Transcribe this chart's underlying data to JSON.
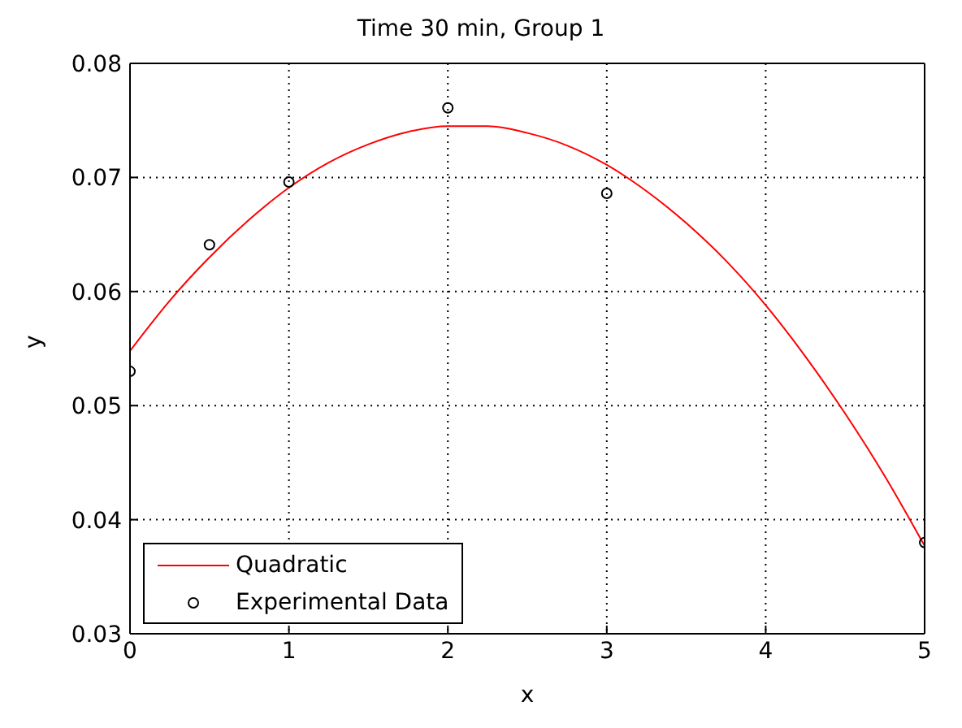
{
  "chart_data": {
    "type": "line",
    "title": "Time 30 min, Group 1",
    "xlabel": "x",
    "ylabel": "y",
    "xlim": [
      0,
      5
    ],
    "xticks": [
      0,
      1,
      2,
      3,
      4,
      5
    ],
    "ylim": [
      0.03,
      0.08
    ],
    "yticks": [
      0.03,
      0.04,
      0.05,
      0.06,
      0.07,
      0.08
    ],
    "grid": true,
    "legend": "bottom left",
    "series": [
      {
        "name": "Quadratic",
        "color": "#ff0000",
        "marker": "none",
        "line_style": "solid",
        "x": [
          0,
          0.25,
          0.5,
          0.75,
          1,
          1.25,
          1.5,
          1.75,
          2,
          2.25,
          2.5,
          2.75,
          3,
          3.25,
          3.5,
          3.75,
          4,
          4.25,
          4.5,
          4.75,
          5
        ],
        "values": [
          0.0548,
          0.0592,
          0.063,
          0.0663,
          0.0691,
          0.0713,
          0.0729,
          0.074,
          0.0745,
          0.0745,
          0.0739,
          0.0728,
          0.0711,
          0.0688,
          0.066,
          0.0627,
          0.0588,
          0.0543,
          0.0493,
          0.0438,
          0.0377
        ]
      },
      {
        "name": "Experimental Data",
        "type": "scatter",
        "color": "#000000",
        "marker": "circle",
        "x": [
          0,
          0.5,
          1,
          2,
          3,
          5
        ],
        "values": [
          0.053,
          0.0641,
          0.0696,
          0.0761,
          0.0686,
          0.038
        ]
      }
    ]
  }
}
